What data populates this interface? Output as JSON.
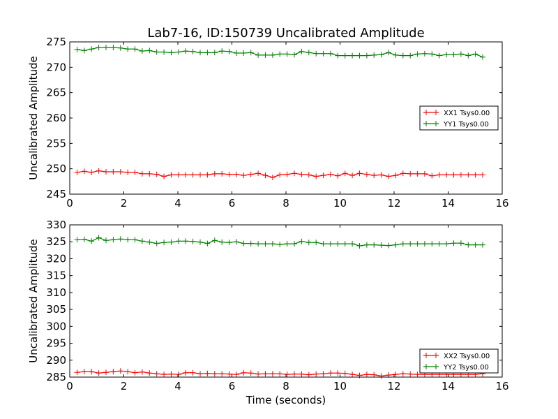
{
  "chart_data": [
    {
      "type": "line",
      "title": "Lab7-16, ID:150739 Uncalibrated Amplitude",
      "xlabel": "",
      "ylabel": "Uncalibrated Amplitude",
      "xlim": [
        0,
        16
      ],
      "ylim": [
        245,
        275
      ],
      "xticks": [
        "0",
        "2",
        "4",
        "6",
        "8",
        "10",
        "12",
        "14",
        "16"
      ],
      "yticks": [
        "245",
        "250",
        "255",
        "260",
        "265",
        "270",
        "275"
      ],
      "legend_position": "center-right",
      "grid": false,
      "x_start": 0.27,
      "x_step": 0.268,
      "series": [
        {
          "name": "XX1 Tsys0.00",
          "color": "#ff0000",
          "marker": "+",
          "values": [
            249.3,
            249.5,
            249.3,
            249.6,
            249.4,
            249.4,
            249.4,
            249.3,
            249.3,
            249.0,
            249.0,
            248.9,
            248.5,
            248.8,
            248.8,
            248.8,
            248.8,
            248.8,
            248.8,
            249.0,
            249.0,
            248.9,
            248.9,
            248.7,
            248.9,
            249.1,
            248.7,
            248.3,
            248.8,
            248.9,
            249.1,
            248.9,
            248.8,
            248.5,
            248.7,
            248.9,
            248.6,
            249.1,
            248.7,
            249.1,
            248.9,
            248.7,
            248.8,
            248.5,
            248.7,
            249.1,
            249.0,
            249.0,
            249.0,
            248.6,
            248.8,
            248.8,
            248.8,
            248.8,
            248.8,
            248.8,
            248.8
          ]
        },
        {
          "name": "YY1 Tsys0.00",
          "color": "#008000",
          "marker": "+",
          "values": [
            273.5,
            273.3,
            273.6,
            273.9,
            273.9,
            273.9,
            273.8,
            273.6,
            273.6,
            273.2,
            273.3,
            273.0,
            273.0,
            272.9,
            273.0,
            273.2,
            273.1,
            272.9,
            272.9,
            272.9,
            273.2,
            273.1,
            272.8,
            272.8,
            272.9,
            272.4,
            272.4,
            272.4,
            272.6,
            272.6,
            272.5,
            273.1,
            272.9,
            272.7,
            272.7,
            272.7,
            272.3,
            272.3,
            272.3,
            272.3,
            272.3,
            272.4,
            272.5,
            272.9,
            272.4,
            272.3,
            272.3,
            272.6,
            272.7,
            272.6,
            272.3,
            272.5,
            272.5,
            272.6,
            272.3,
            272.6,
            272.0
          ]
        }
      ]
    },
    {
      "type": "line",
      "title": "",
      "xlabel": "Time (seconds)",
      "ylabel": "Uncalibrated Amplitude",
      "xlim": [
        0,
        16
      ],
      "ylim": [
        285,
        330
      ],
      "xticks": [
        "0",
        "2",
        "4",
        "6",
        "8",
        "10",
        "12",
        "14",
        "16"
      ],
      "yticks": [
        "285",
        "290",
        "295",
        "300",
        "305",
        "310",
        "315",
        "320",
        "325",
        "330"
      ],
      "legend_position": "lower-right",
      "grid": false,
      "x_start": 0.27,
      "x_step": 0.268,
      "series": [
        {
          "name": "XX2 Tsys0.00",
          "color": "#ff0000",
          "marker": "+",
          "values": [
            286.4,
            286.6,
            286.6,
            286.2,
            286.4,
            286.6,
            286.8,
            286.6,
            286.3,
            286.5,
            286.2,
            286.0,
            285.8,
            285.9,
            285.8,
            286.3,
            286.3,
            286.0,
            286.1,
            286.0,
            286.0,
            285.9,
            285.8,
            286.3,
            286.2,
            285.9,
            286.0,
            286.0,
            286.0,
            285.8,
            285.9,
            285.9,
            285.7,
            285.9,
            286.0,
            286.2,
            286.2,
            286.1,
            285.8,
            285.5,
            285.8,
            285.7,
            285.3,
            285.6,
            285.8,
            286.0,
            285.9,
            285.8,
            285.8,
            285.8,
            285.8,
            285.8,
            285.8,
            285.8,
            285.8,
            285.8,
            286.0
          ]
        },
        {
          "name": "YY2 Tsys0.00",
          "color": "#008000",
          "marker": "+",
          "values": [
            325.6,
            325.7,
            325.2,
            326.2,
            325.4,
            325.6,
            325.8,
            325.6,
            325.6,
            325.2,
            324.9,
            324.5,
            324.8,
            324.9,
            325.2,
            325.2,
            325.1,
            324.9,
            324.5,
            325.4,
            324.9,
            324.8,
            325.0,
            324.5,
            324.5,
            324.4,
            324.4,
            324.4,
            324.2,
            324.4,
            324.4,
            325.1,
            324.8,
            324.8,
            324.4,
            324.4,
            324.4,
            324.4,
            324.4,
            323.8,
            324.1,
            324.1,
            324.0,
            323.9,
            324.1,
            324.4,
            324.4,
            324.4,
            324.4,
            324.4,
            324.4,
            324.4,
            324.6,
            324.6,
            324.1,
            324.1,
            324.1
          ]
        }
      ]
    }
  ]
}
